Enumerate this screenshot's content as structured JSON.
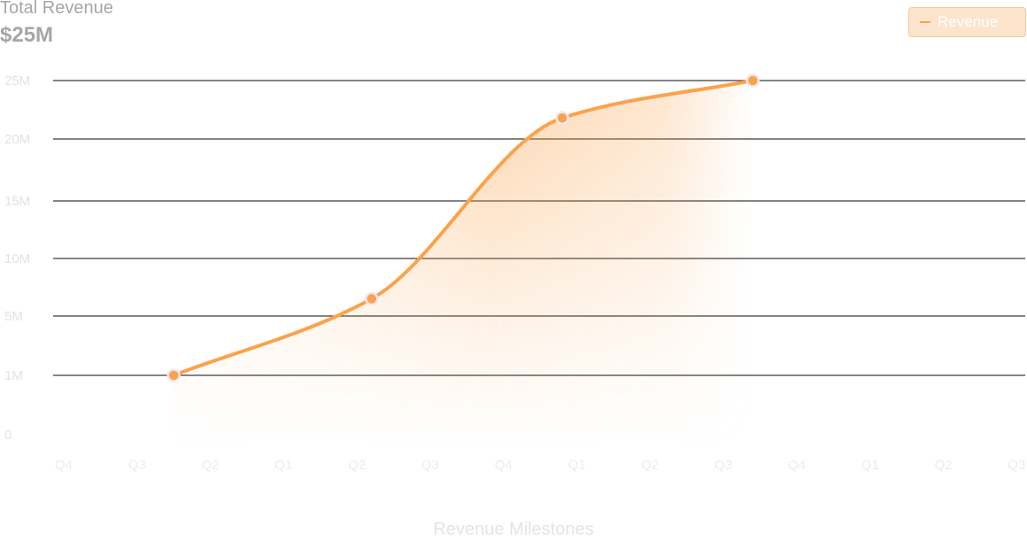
{
  "header": {
    "title": "Total Revenue",
    "value": "$25M"
  },
  "legend": {
    "label": "Revenue",
    "color": "#fba24c"
  },
  "chart_data": {
    "type": "area",
    "title": "Total Revenue",
    "xlabel": "Revenue Milestones",
    "ylabel": "",
    "x_ticks": [
      "Q4",
      "Q3",
      "Q2",
      "Q1",
      "Q2",
      "Q3",
      "Q4",
      "Q1",
      "Q2",
      "Q3",
      "Q4",
      "Q1",
      "Q2",
      "Q3"
    ],
    "y_ticks": [
      {
        "label": "25M",
        "value": 25
      },
      {
        "label": "20M",
        "value": 20
      },
      {
        "label": "15M",
        "value": 15
      },
      {
        "label": "10M",
        "value": 10
      },
      {
        "label": "5M",
        "value": 5
      },
      {
        "label": "1M",
        "value": 1
      },
      {
        "label": "0",
        "value": 0
      }
    ],
    "series": [
      {
        "name": "Revenue",
        "color": "#fba24c",
        "points": [
          {
            "x": 1.5,
            "y": 1
          },
          {
            "x": 4.2,
            "y": 6.5
          },
          {
            "x": 6.8,
            "y": 21.8
          },
          {
            "x": 9.4,
            "y": 25
          }
        ]
      }
    ],
    "grid": true,
    "legend_position": "top-right"
  }
}
